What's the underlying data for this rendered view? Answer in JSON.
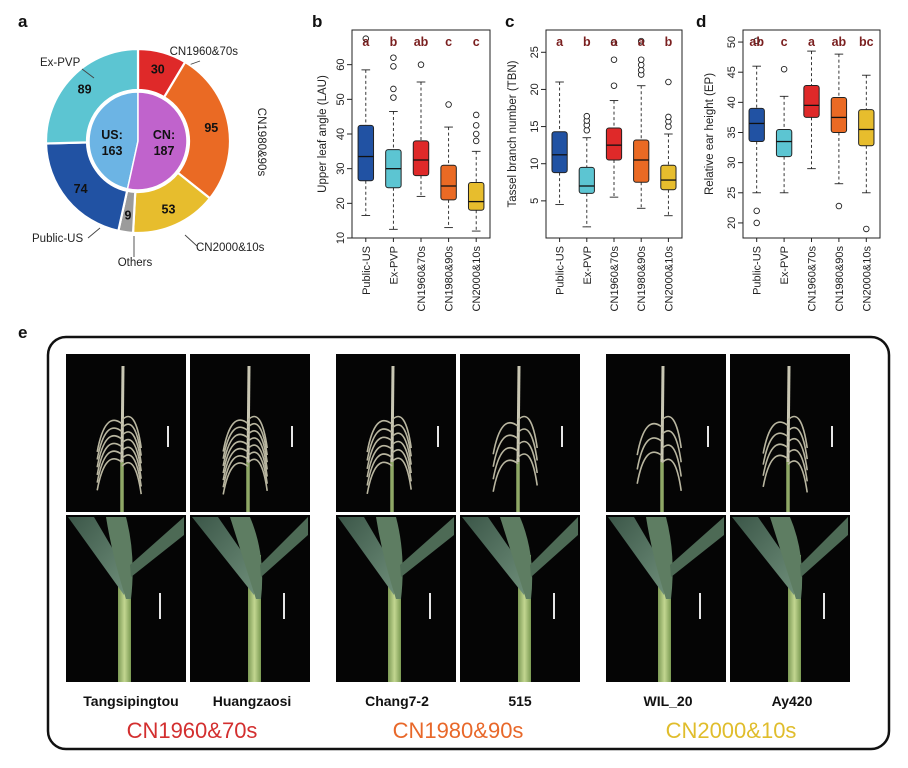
{
  "panel_labels": [
    "a",
    "b",
    "c",
    "d",
    "e"
  ],
  "colors": {
    "Public-US": "#2152a3",
    "Ex-PVP": "#5cc5d2",
    "CN1960&70s": "#df2929",
    "CN1980&90s": "#ea6a24",
    "CN2000&10s": "#e7bd2d",
    "Others": "#9b9b9b",
    "US_inner": "#6cb4e4",
    "CN_inner": "#c063cc",
    "sig_text": "#7a1f1f",
    "era_1960": "#d32f2f",
    "era_1980": "#e8682a",
    "era_2000": "#e0bd2c"
  },
  "chart_data": [
    {
      "type": "pie",
      "panel": "a",
      "inner": [
        {
          "label": "US:",
          "value": 163
        },
        {
          "label": "CN:",
          "value": 187
        }
      ],
      "outer": [
        {
          "name": "CN1960&70s",
          "value": 30
        },
        {
          "name": "CN1980&90s",
          "value": 95
        },
        {
          "name": "CN2000&10s",
          "value": 53
        },
        {
          "name": "Others",
          "value": 9
        },
        {
          "name": "Public-US",
          "value": 74
        },
        {
          "name": "Ex-PVP",
          "value": 89
        }
      ]
    },
    {
      "type": "box",
      "panel": "b",
      "ylabel": "Upper leaf angle (LAU)",
      "ylim": [
        10,
        70
      ],
      "yticks": [
        10,
        20,
        30,
        40,
        50,
        60
      ],
      "categories": [
        "Public-US",
        "Ex-PVP",
        "CN1960&70s",
        "CN1980&90s",
        "CN2000&10s"
      ],
      "significance": [
        "a",
        "b",
        "ab",
        "c",
        "c"
      ],
      "boxes": [
        {
          "whisker_low": 16.5,
          "q1": 26.5,
          "median": 33.5,
          "q3": 42.5,
          "whisker_high": 58.5,
          "outliers": [
            67.5
          ]
        },
        {
          "whisker_low": 12.5,
          "q1": 24.5,
          "median": 30,
          "q3": 35.5,
          "whisker_high": 46.5,
          "outliers": [
            50.5,
            53,
            59.5,
            62
          ]
        },
        {
          "whisker_low": 22,
          "q1": 28,
          "median": 32.5,
          "q3": 38,
          "whisker_high": 55,
          "outliers": [
            60
          ]
        },
        {
          "whisker_low": 13,
          "q1": 21,
          "median": 25,
          "q3": 31,
          "whisker_high": 42,
          "outliers": [
            48.5
          ]
        },
        {
          "whisker_low": 12,
          "q1": 18,
          "median": 20.5,
          "q3": 26,
          "whisker_high": 35,
          "outliers": [
            38,
            40,
            42.5,
            45.5
          ]
        }
      ]
    },
    {
      "type": "box",
      "panel": "c",
      "ylabel": "Tassel branch number (TBN)",
      "ylim": [
        0,
        28
      ],
      "yticks": [
        5,
        10,
        15,
        20,
        25
      ],
      "categories": [
        "Public-US",
        "Ex-PVP",
        "CN1960&70s",
        "CN1980&90s",
        "CN2000&10s"
      ],
      "significance": [
        "a",
        "b",
        "a",
        "a",
        "b"
      ],
      "boxes": [
        {
          "whisker_low": 4.5,
          "q1": 8.8,
          "median": 11.2,
          "q3": 14.3,
          "whisker_high": 21,
          "outliers": []
        },
        {
          "whisker_low": 1.5,
          "q1": 6,
          "median": 7,
          "q3": 9.5,
          "whisker_high": 13.5,
          "outliers": [
            14.5,
            15.2,
            15.8,
            16.4
          ]
        },
        {
          "whisker_low": 5.5,
          "q1": 10.5,
          "median": 12.5,
          "q3": 14.8,
          "whisker_high": 18.5,
          "outliers": [
            20.5,
            24,
            26.3
          ]
        },
        {
          "whisker_low": 4,
          "q1": 7.5,
          "median": 10.5,
          "q3": 13.2,
          "whisker_high": 20.5,
          "outliers": [
            22,
            22.6,
            23.3,
            24,
            26.5
          ]
        },
        {
          "whisker_low": 3,
          "q1": 6.5,
          "median": 7.8,
          "q3": 9.8,
          "whisker_high": 14,
          "outliers": [
            15,
            15.7,
            16.3,
            21
          ]
        }
      ]
    },
    {
      "type": "box",
      "panel": "d",
      "ylabel": "Relative ear height (EP)",
      "ylim": [
        17.5,
        52
      ],
      "yticks": [
        20,
        25,
        30,
        35,
        40,
        45,
        50
      ],
      "categories": [
        "Public-US",
        "Ex-PVP",
        "CN1960&70s",
        "CN1980&90s",
        "CN2000&10s"
      ],
      "significance": [
        "ab",
        "c",
        "a",
        "ab",
        "bc"
      ],
      "boxes": [
        {
          "whisker_low": 25,
          "q1": 33.5,
          "median": 36.5,
          "q3": 39,
          "whisker_high": 46,
          "outliers": [
            22,
            20,
            50.2
          ]
        },
        {
          "whisker_low": 25,
          "q1": 31,
          "median": 33.5,
          "q3": 35.5,
          "whisker_high": 41,
          "outliers": [
            45.5
          ]
        },
        {
          "whisker_low": 29,
          "q1": 37.5,
          "median": 39.5,
          "q3": 42.8,
          "whisker_high": 48.5,
          "outliers": []
        },
        {
          "whisker_low": 26.5,
          "q1": 35,
          "median": 37.5,
          "q3": 40.8,
          "whisker_high": 48,
          "outliers": [
            22.8
          ]
        },
        {
          "whisker_low": 25,
          "q1": 32.8,
          "median": 35.5,
          "q3": 38.8,
          "whisker_high": 44.5,
          "outliers": [
            19
          ]
        }
      ]
    }
  ],
  "panel_e": {
    "groups": [
      {
        "era": "CN1960&70s",
        "lines": [
          "Tangsipingtou",
          "Huangzaosi"
        ]
      },
      {
        "era": "CN1980&90s",
        "lines": [
          "Chang7-2",
          "515"
        ]
      },
      {
        "era": "CN2000&10s",
        "lines": [
          "WIL_20",
          "Ay420"
        ]
      }
    ]
  }
}
